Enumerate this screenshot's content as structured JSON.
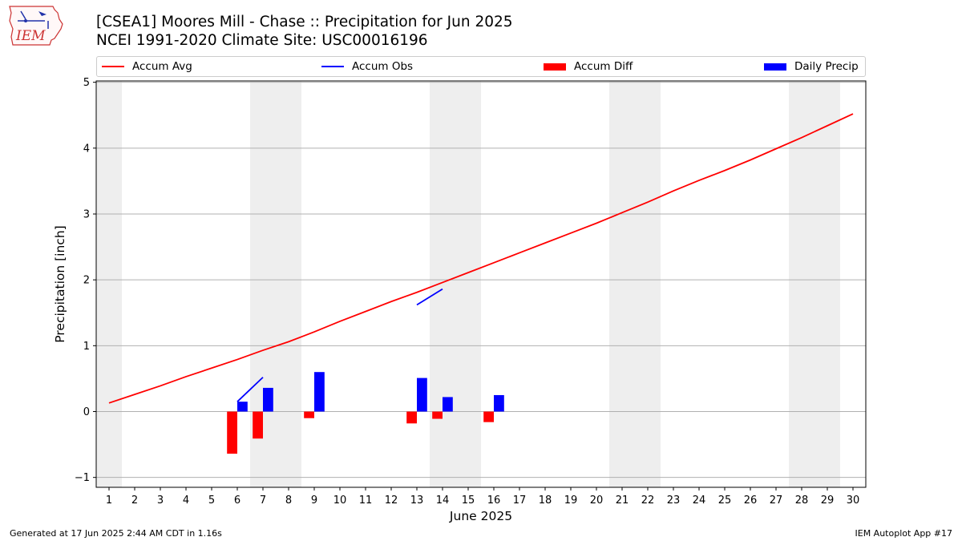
{
  "title": "[CSEA1] Moores Mill - Chase :: Precipitation for Jun 2025",
  "subtitle": "NCEI 1991-2020 Climate Site: USC00016196",
  "logo_text": "IEM",
  "footer_left": "Generated at 17 Jun 2025 2:44 AM CDT in 1.16s",
  "footer_right": "IEM Autoplot App #17",
  "colors": {
    "avg": "#ff0000",
    "obs": "#0000ff",
    "diff": "#ff0000",
    "daily": "#0000ff",
    "weekend": "#eeeeee",
    "grid": "#b0b0b0"
  },
  "chart_data": {
    "type": "bar",
    "xlabel": "June 2025",
    "ylabel": "Precipitation [inch]",
    "xlim": [
      0.5,
      30.5
    ],
    "ylim": [
      -1.15,
      5.02
    ],
    "x_ticks": [
      1,
      2,
      3,
      4,
      5,
      6,
      7,
      8,
      9,
      10,
      11,
      12,
      13,
      14,
      15,
      16,
      17,
      18,
      19,
      20,
      21,
      22,
      23,
      24,
      25,
      26,
      27,
      28,
      29,
      30
    ],
    "y_ticks": [
      -1,
      0,
      1,
      2,
      3,
      4,
      5
    ],
    "grid": "horizontal",
    "legend_position": "top",
    "weekend_bands": [
      [
        0.5,
        1.5
      ],
      [
        6.5,
        8.5
      ],
      [
        13.5,
        15.5
      ],
      [
        20.5,
        22.5
      ],
      [
        27.5,
        29.5
      ]
    ],
    "series": [
      {
        "name": "Accum Avg",
        "kind": "line",
        "x": [
          1,
          2,
          3,
          4,
          5,
          6,
          7,
          8,
          9,
          10,
          11,
          12,
          13,
          14,
          15,
          16,
          17,
          18,
          19,
          20,
          21,
          22,
          23,
          24,
          25,
          26,
          27,
          28,
          29,
          30
        ],
        "values": [
          0.13,
          0.26,
          0.39,
          0.53,
          0.66,
          0.79,
          0.93,
          1.06,
          1.21,
          1.37,
          1.52,
          1.67,
          1.81,
          1.96,
          2.11,
          2.26,
          2.41,
          2.56,
          2.71,
          2.86,
          3.02,
          3.18,
          3.35,
          3.51,
          3.66,
          3.82,
          3.99,
          4.16,
          4.34,
          4.52
        ]
      },
      {
        "name": "Accum Obs",
        "kind": "line",
        "segments": [
          {
            "x": [
              6,
              7
            ],
            "values": [
              0.15,
              0.52
            ]
          },
          {
            "x": [
              13,
              14
            ],
            "values": [
              1.62,
              1.86
            ]
          }
        ]
      },
      {
        "name": "Accum Diff",
        "kind": "bar",
        "x": [
          6,
          7,
          9,
          13,
          14,
          16
        ],
        "values": [
          -0.64,
          -0.41,
          -0.1,
          -0.18,
          -0.11,
          -0.16
        ]
      },
      {
        "name": "Daily Precip",
        "kind": "bar",
        "x": [
          6,
          7,
          9,
          13,
          14,
          16
        ],
        "values": [
          0.15,
          0.36,
          0.6,
          0.51,
          0.22,
          0.25
        ]
      }
    ]
  }
}
